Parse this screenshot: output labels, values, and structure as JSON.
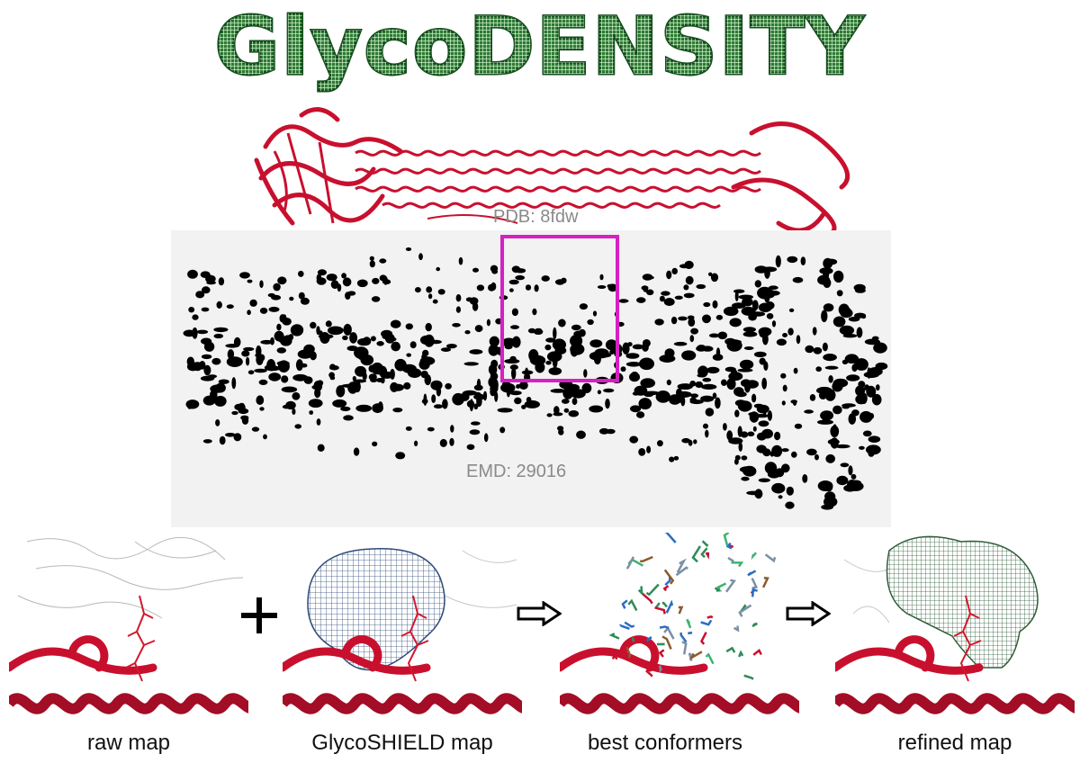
{
  "title": "GlycoDENSITY",
  "labels": {
    "pdb": "PDB: 8fdw",
    "emd": "EMD: 29016"
  },
  "panels": [
    {
      "caption": "raw map"
    },
    {
      "caption": "GlycoSHIELD map"
    },
    {
      "caption": "best conformers"
    },
    {
      "caption": "refined map"
    }
  ],
  "colors": {
    "title_green": "#2f7a33",
    "protein_red": "#c8102e",
    "highlight_magenta": "#d620c4",
    "mesh_blue": "#2d4a7a",
    "mesh_green": "#2f5e3a",
    "label_gray": "#8a8a8a"
  },
  "icons": {
    "plus": "plus-icon",
    "arrow": "outline-right-arrow-icon"
  }
}
